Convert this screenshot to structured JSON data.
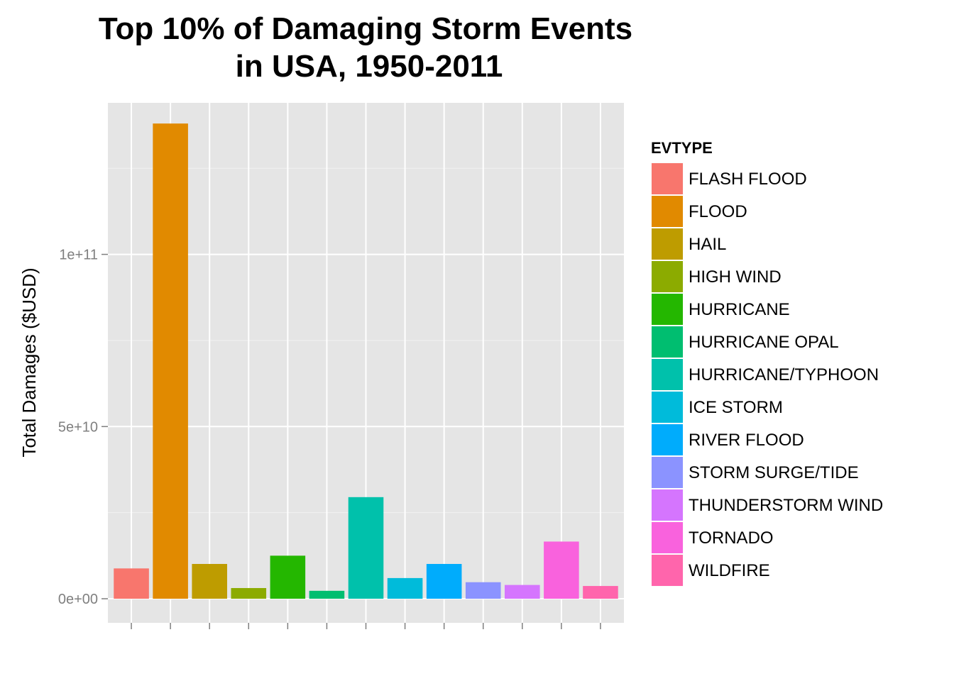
{
  "chart_data": {
    "type": "bar",
    "title": [
      "Top 10% of Damaging Storm Events",
      "in USA, 1950-2011"
    ],
    "ylabel": "Total Damages ($USD)",
    "xlabel": "",
    "ylim": [
      -7000000000,
      144000000000
    ],
    "yticks": [
      {
        "value": 0,
        "label": "0e+00"
      },
      {
        "value": 50000000000,
        "label": "5e+10"
      },
      {
        "value": 100000000000,
        "label": "1e+11"
      }
    ],
    "grid": true,
    "legend": {
      "title": "EVTYPE",
      "placement": "right"
    },
    "categories": [
      "FLASH FLOOD",
      "FLOOD",
      "HAIL",
      "HIGH WIND",
      "HURRICANE",
      "HURRICANE OPAL",
      "HURRICANE/TYPHOON",
      "ICE STORM",
      "RIVER FLOOD",
      "STORM SURGE/TIDE",
      "THUNDERSTORM WIND",
      "TORNADO",
      "WILDFIRE"
    ],
    "values": [
      8800000000,
      138000000000,
      10100000000,
      3100000000,
      12500000000,
      2300000000,
      29500000000,
      6000000000,
      10100000000,
      4800000000,
      4000000000,
      16600000000,
      3700000000
    ],
    "colors": [
      "#F8766D",
      "#E18A00",
      "#BE9C00",
      "#8CAB00",
      "#24B700",
      "#00BE70",
      "#00C1AB",
      "#00BBDA",
      "#00ACFC",
      "#8B93FF",
      "#D575FE",
      "#F962DD",
      "#FF65AC"
    ]
  }
}
